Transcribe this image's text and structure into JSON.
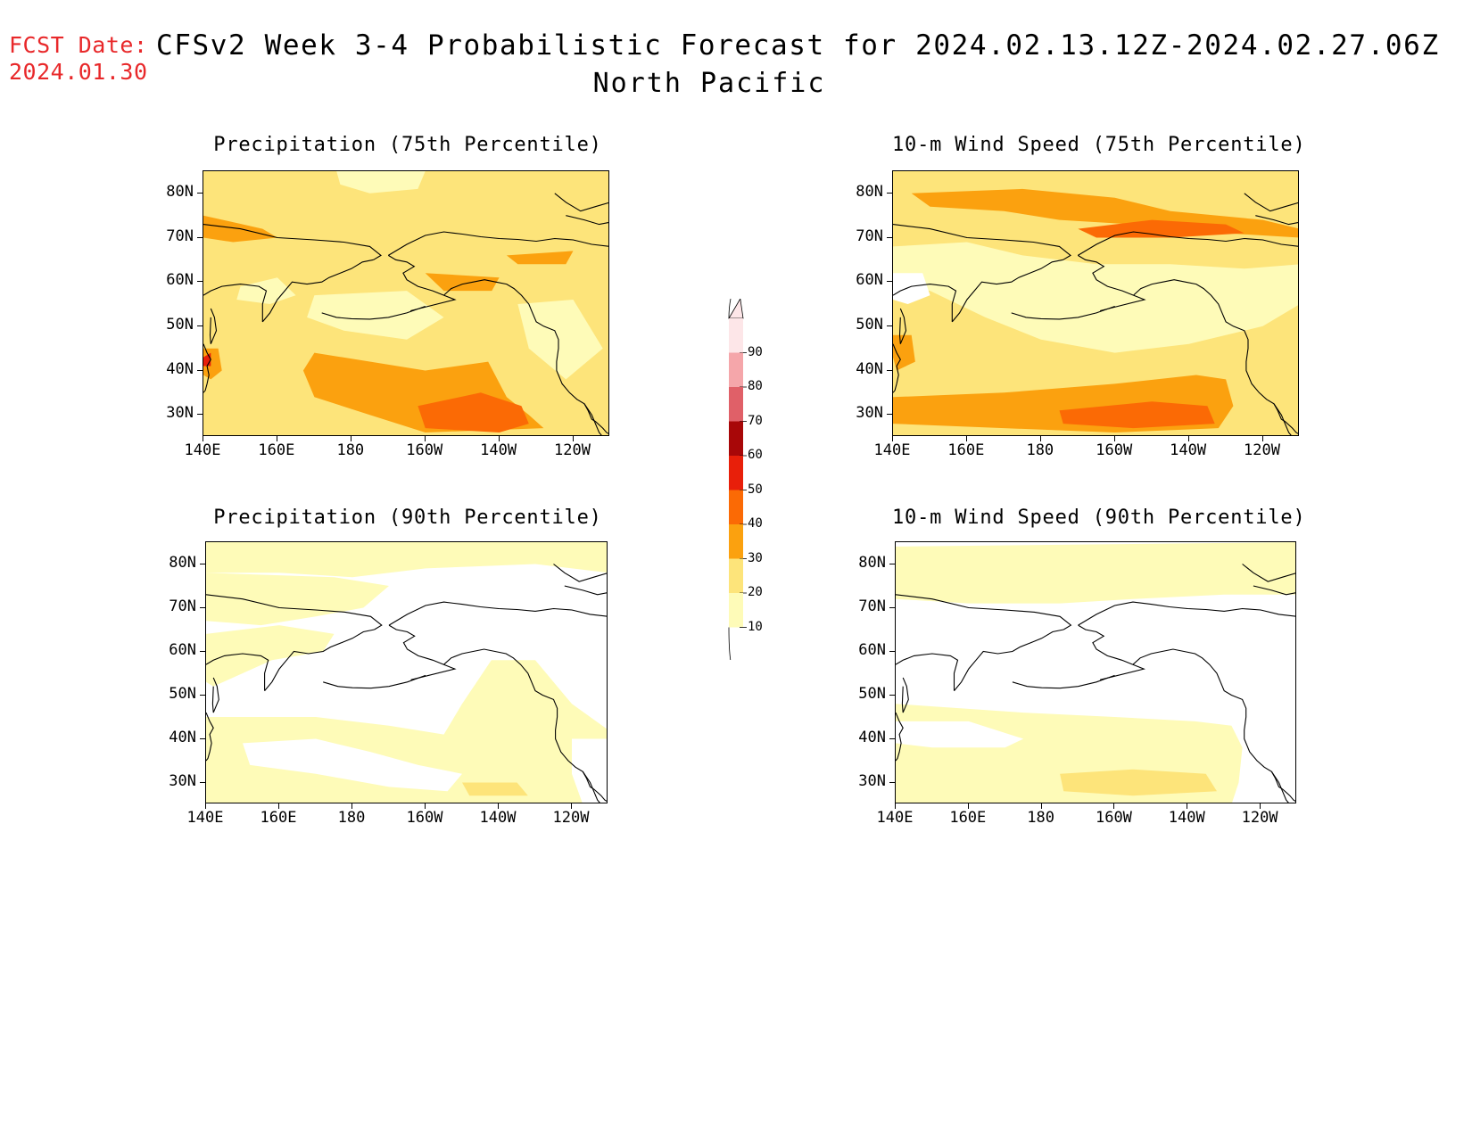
{
  "header": {
    "fcst_label": "FCST Date:",
    "fcst_date": "2024.01.30",
    "title": "CFSv2 Week 3-4 Probabilistic Forecast for 2024.02.13.12Z-2024.02.27.06Z",
    "region": "North Pacific"
  },
  "panels": [
    {
      "title": "Precipitation (75th Percentile)"
    },
    {
      "title": "10-m Wind Speed (75th Percentile)"
    },
    {
      "title": "Precipitation (90th Percentile)"
    },
    {
      "title": "10-m Wind Speed (90th Percentile)"
    }
  ],
  "axes": {
    "lat_labels": [
      "80N",
      "70N",
      "60N",
      "50N",
      "40N",
      "30N"
    ],
    "lon_labels": [
      "140E",
      "160E",
      "180",
      "160W",
      "140W",
      "120W"
    ]
  },
  "colorbar": {
    "levels": [
      "90",
      "80",
      "70",
      "60",
      "50",
      "40",
      "30",
      "20",
      "10"
    ],
    "colors": {
      "10-20": "#fefbb8",
      "20-30": "#fde47a",
      "30-40": "#fba10f",
      "40-50": "#fb6a05",
      "50-60": "#e81f0a",
      "60-70": "#a80708",
      "70-80": "#e06068",
      "80-90": "#f5a6aa",
      "90+": "#fde6e8"
    }
  }
}
